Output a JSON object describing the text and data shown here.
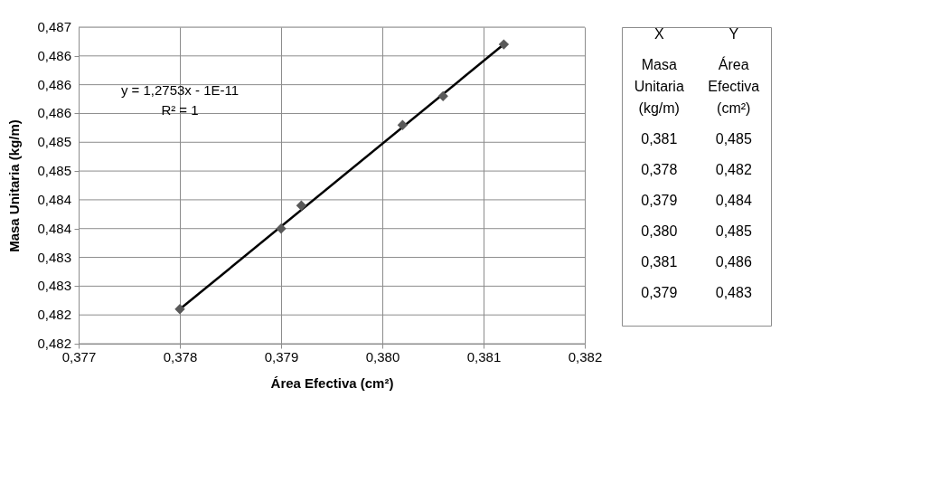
{
  "chart_data": {
    "type": "scatter",
    "xlabel": "Área Efectiva  (cm²)",
    "ylabel": "Masa Unitaria (kg/m)",
    "x": [
      0.378,
      0.379,
      0.3792,
      0.3802,
      0.3806,
      0.3812
    ],
    "series": [
      {
        "color": "#595959",
        "marker": "diamond",
        "values": [
          0.4821,
          0.4835,
          0.4839,
          0.4853,
          0.4858,
          0.4867
        ]
      },
      {
        "type": "line",
        "color": "#000000",
        "x": [
          0.378,
          0.3812
        ],
        "values": [
          0.4821,
          0.4867
        ]
      }
    ],
    "xlim": [
      0.377,
      0.382
    ],
    "xticks": [
      {
        "value": 0.377,
        "label": "0,377"
      },
      {
        "value": 0.378,
        "label": "0,378"
      },
      {
        "value": 0.379,
        "label": "0,379"
      },
      {
        "value": 0.38,
        "label": "0,380"
      },
      {
        "value": 0.381,
        "label": "0,381"
      },
      {
        "value": 0.382,
        "label": "0,382"
      }
    ],
    "ylim": [
      0.4815,
      0.487
    ],
    "yticks": [
      {
        "value": 0.4815,
        "label": "0,482"
      },
      {
        "value": 0.482,
        "label": "0,482"
      },
      {
        "value": 0.4825,
        "label": "0,483"
      },
      {
        "value": 0.483,
        "label": "0,483"
      },
      {
        "value": 0.4835,
        "label": "0,484"
      },
      {
        "value": 0.484,
        "label": "0,484"
      },
      {
        "value": 0.4845,
        "label": "0,485"
      },
      {
        "value": 0.485,
        "label": "0,485"
      },
      {
        "value": 0.4855,
        "label": "0,486"
      },
      {
        "value": 0.486,
        "label": "0,486"
      },
      {
        "value": 0.4865,
        "label": "0,486"
      },
      {
        "value": 0.487,
        "label": "0,487"
      }
    ],
    "grid": true,
    "legend": false,
    "annotations": [
      "y = 1,2753x - 1E-11",
      "R² = 1",
      "X",
      "Y",
      "Masa Unitaria (kg/m)",
      "Área Efectiva (cm²)",
      "0,381",
      "0,485",
      "0,378",
      "0,482",
      "0,379",
      "0,484",
      "0,380",
      "0,485",
      "0,381",
      "0,486",
      "0,379",
      "0,483"
    ]
  }
}
